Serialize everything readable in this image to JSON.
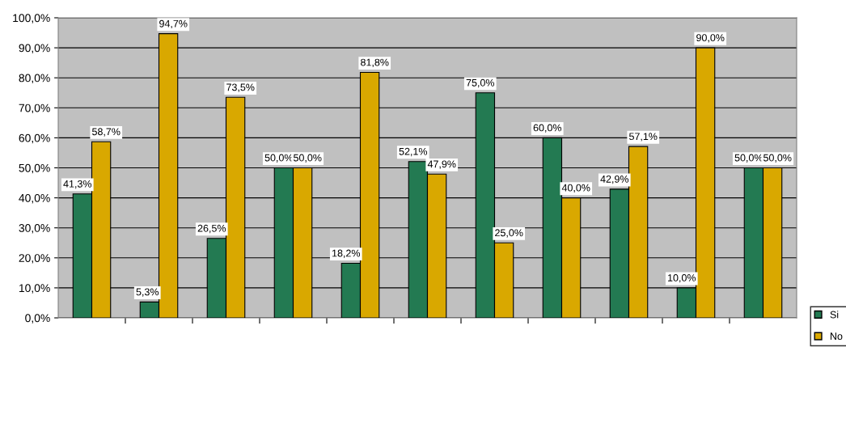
{
  "chart_data": {
    "type": "bar",
    "categories": [
      null,
      null,
      null,
      null,
      null,
      null,
      null,
      null,
      null,
      null,
      null
    ],
    "series": [
      {
        "name": "Si",
        "color": "#237a52",
        "values": [
          41.3,
          5.3,
          26.5,
          50.0,
          18.2,
          52.1,
          75.0,
          60.0,
          42.9,
          10.0,
          50.0
        ],
        "value_labels": [
          "41,3%",
          "5,3%",
          "26,5%",
          "50,0%",
          "18,2%",
          "52,1%",
          "75,0%",
          "60,0%",
          "42,9%",
          "10,0%",
          "50,0%"
        ]
      },
      {
        "name": "No",
        "color": "#d9a800",
        "values": [
          58.7,
          94.7,
          73.5,
          50.0,
          81.8,
          47.9,
          25.0,
          40.0,
          57.1,
          90.0,
          50.0
        ],
        "value_labels": [
          "58,7%",
          "94,7%",
          "73,5%",
          "50,0%",
          "81,8%",
          "47,9%",
          "25,0%",
          "40,0%",
          "57,1%",
          "90,0%",
          "50,0%"
        ]
      }
    ],
    "ylim": [
      0,
      100
    ],
    "yticks": [
      {
        "value": 0,
        "label": "0,0%"
      },
      {
        "value": 10,
        "label": "10,0%"
      },
      {
        "value": 20,
        "label": "20,0%"
      },
      {
        "value": 30,
        "label": "30,0%"
      },
      {
        "value": 40,
        "label": "40,0%"
      },
      {
        "value": 50,
        "label": "50,0%"
      },
      {
        "value": 60,
        "label": "60,0%"
      },
      {
        "value": 70,
        "label": "70,0%"
      },
      {
        "value": 80,
        "label": "80,0%"
      },
      {
        "value": 90,
        "label": "90,0%"
      },
      {
        "value": 100,
        "label": "100,0%"
      }
    ],
    "grid": "y",
    "legend": "right"
  }
}
